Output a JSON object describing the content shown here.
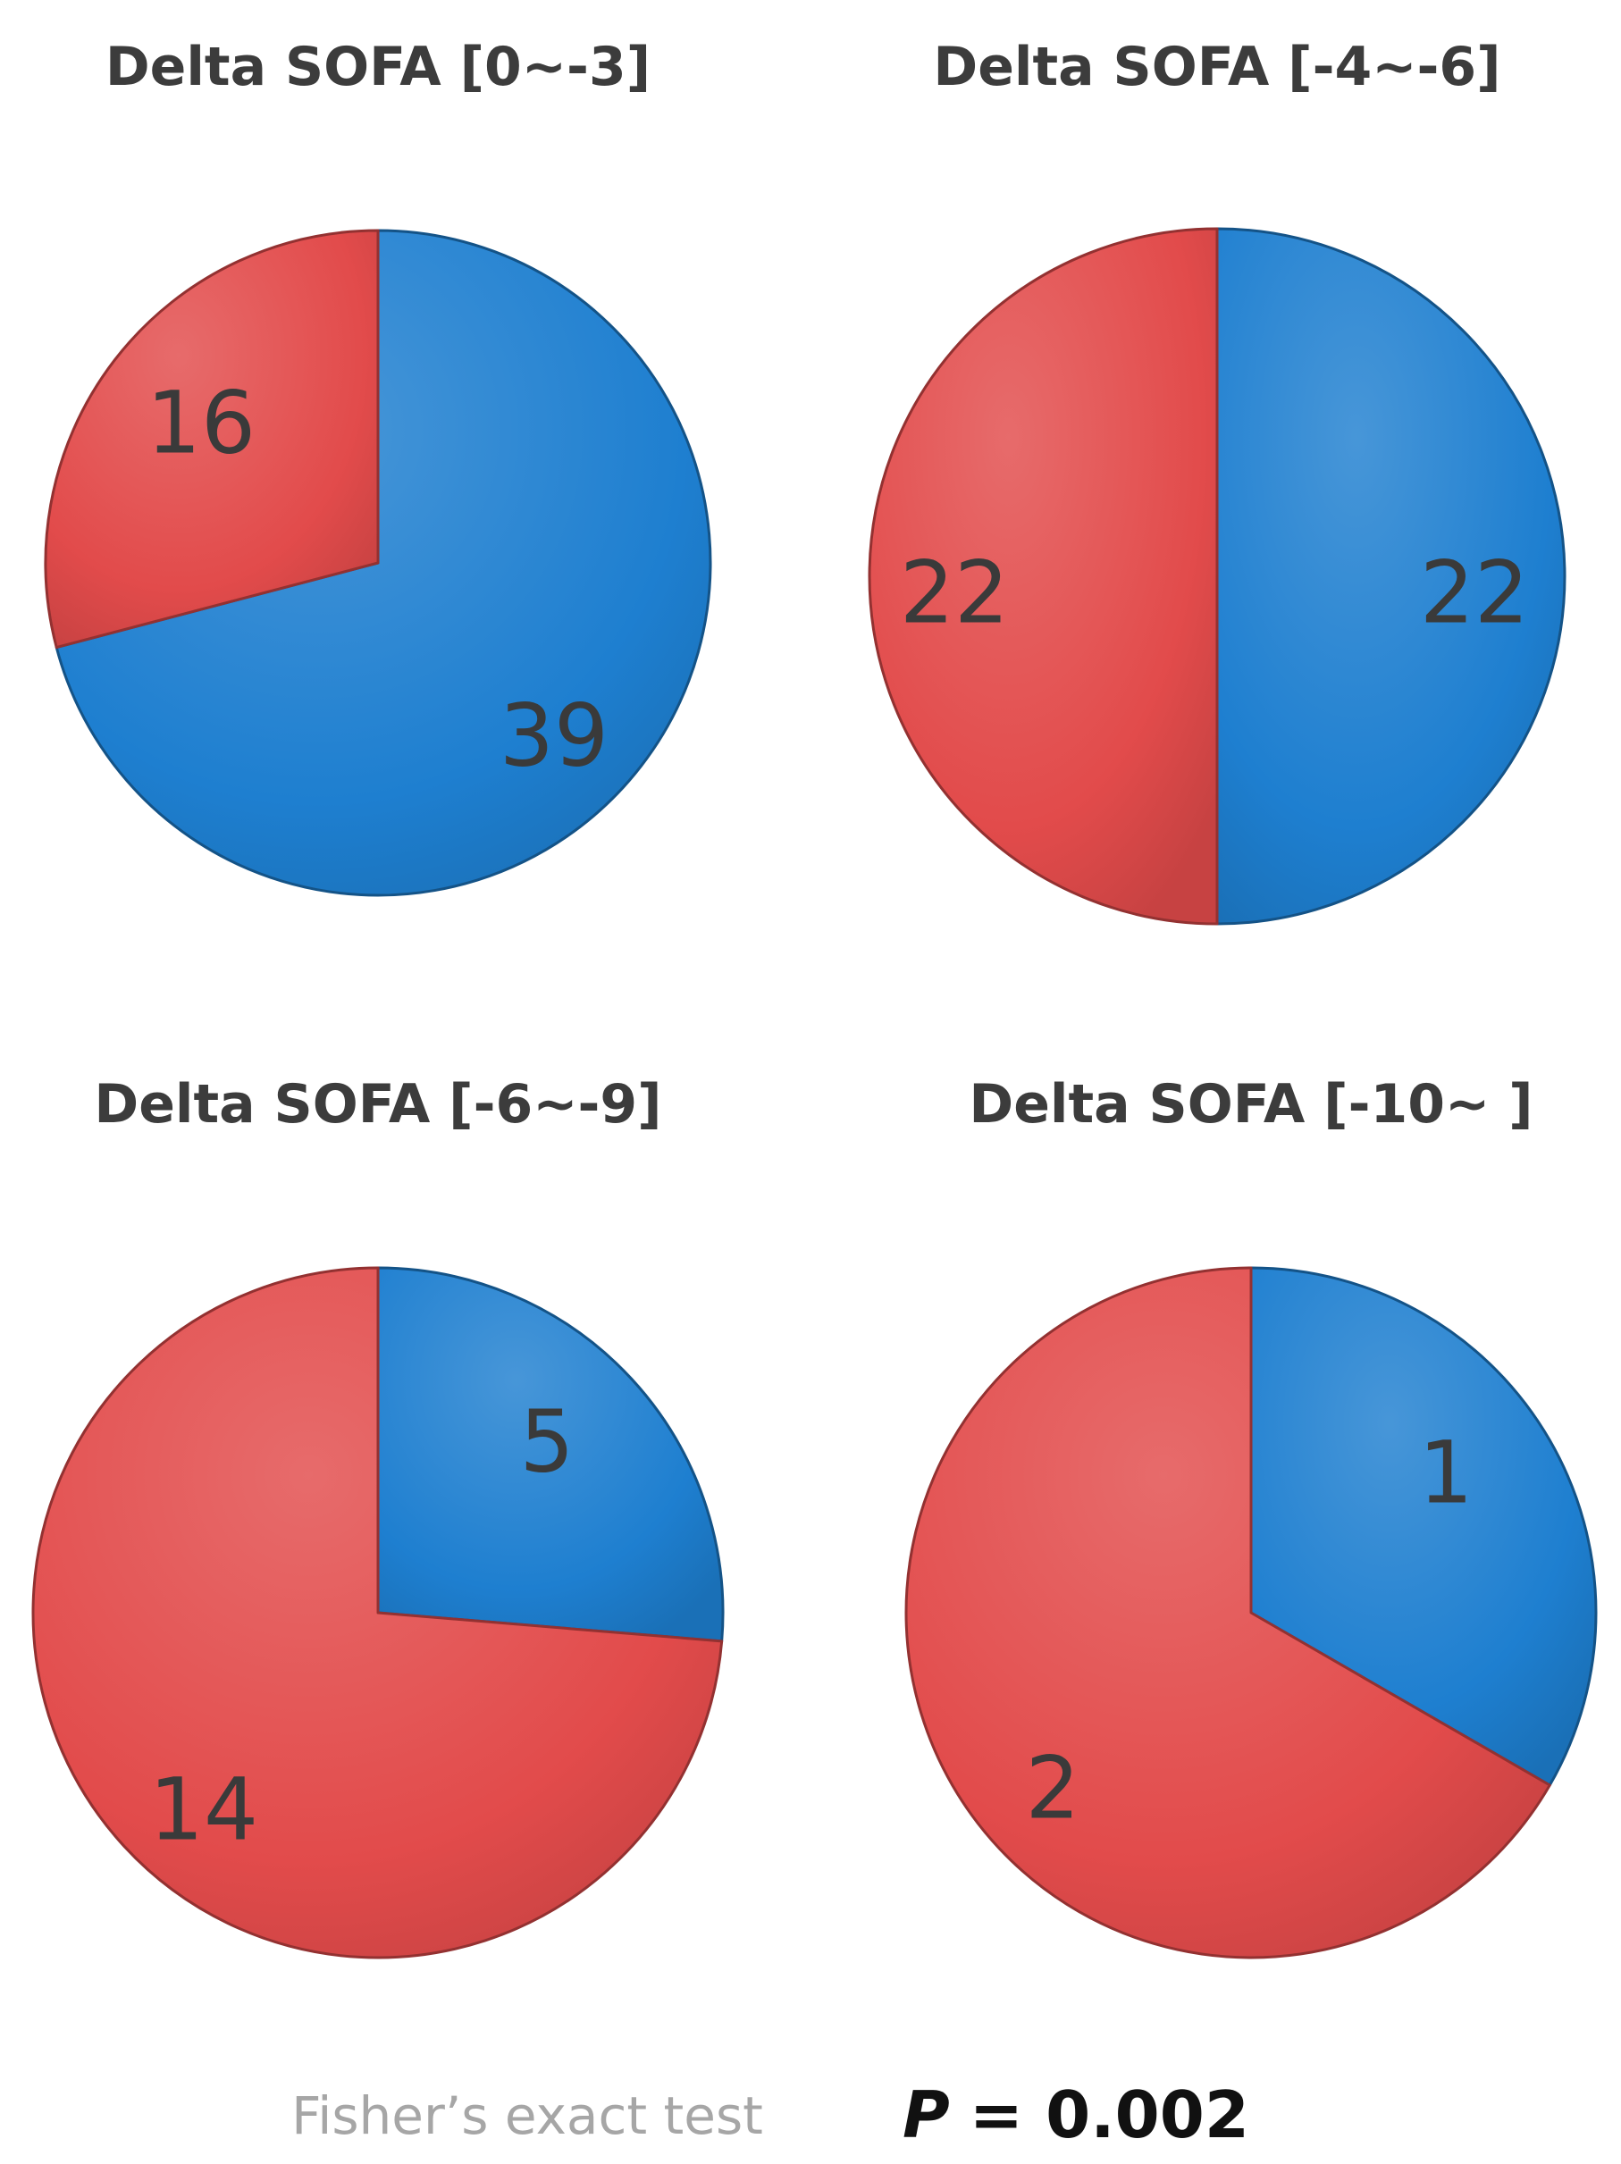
{
  "chart_data": [
    {
      "type": "pie",
      "title": "Delta SOFA [0~-3]",
      "slices": [
        {
          "value": 39,
          "label": "39",
          "color": "#1e7fd0"
        },
        {
          "value": 16,
          "label": "16",
          "color": "#e24b4b"
        }
      ]
    },
    {
      "type": "pie",
      "title": "Delta SOFA [-4~-6]",
      "slices": [
        {
          "value": 22,
          "label": "22",
          "color": "#1e7fd0"
        },
        {
          "value": 22,
          "label": "22",
          "color": "#e24b4b"
        }
      ]
    },
    {
      "type": "pie",
      "title": "Delta SOFA [-6~-9]",
      "slices": [
        {
          "value": 5,
          "label": "5",
          "color": "#1e7fd0"
        },
        {
          "value": 14,
          "label": "14",
          "color": "#e24b4b"
        }
      ]
    },
    {
      "type": "pie",
      "title": "Delta SOFA [-10~ ]",
      "slices": [
        {
          "value": 1,
          "label": "1",
          "color": "#1e7fd0"
        },
        {
          "value": 2,
          "label": "2",
          "color": "#e24b4b"
        }
      ]
    }
  ],
  "footer": {
    "test_label": "Fisher’s exact test",
    "p_symbol": "P",
    "p_value": "= 0.002"
  }
}
